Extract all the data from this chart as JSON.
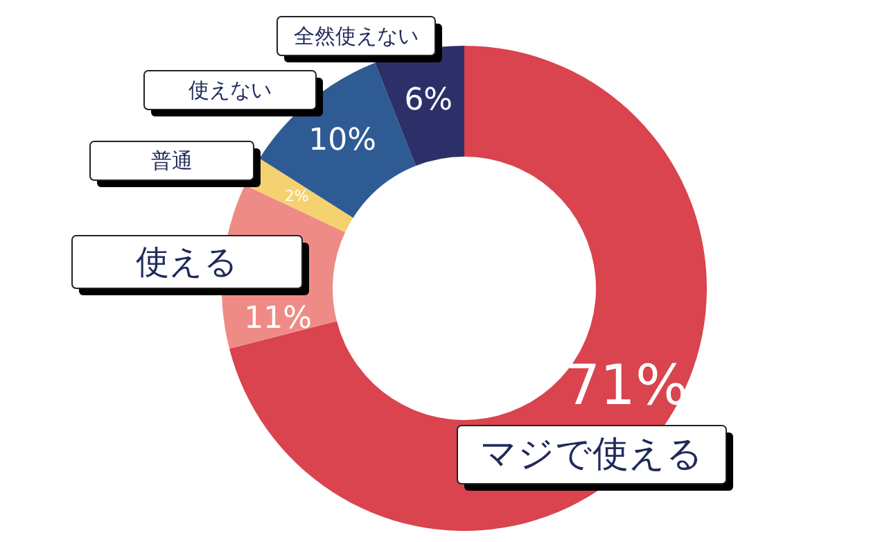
{
  "chart_data": {
    "type": "donut",
    "categories": [
      "マジで使える",
      "使える",
      "普通",
      "使えない",
      "全然使えない"
    ],
    "values": [
      71,
      11,
      2,
      10,
      6
    ],
    "colors": [
      "#d9444f",
      "#ef8b86",
      "#f6d16f",
      "#2f5b94",
      "#2c2f68"
    ],
    "value_labels": [
      "71%",
      "11%",
      "2%",
      "10%",
      "6%"
    ],
    "legend": false
  }
}
